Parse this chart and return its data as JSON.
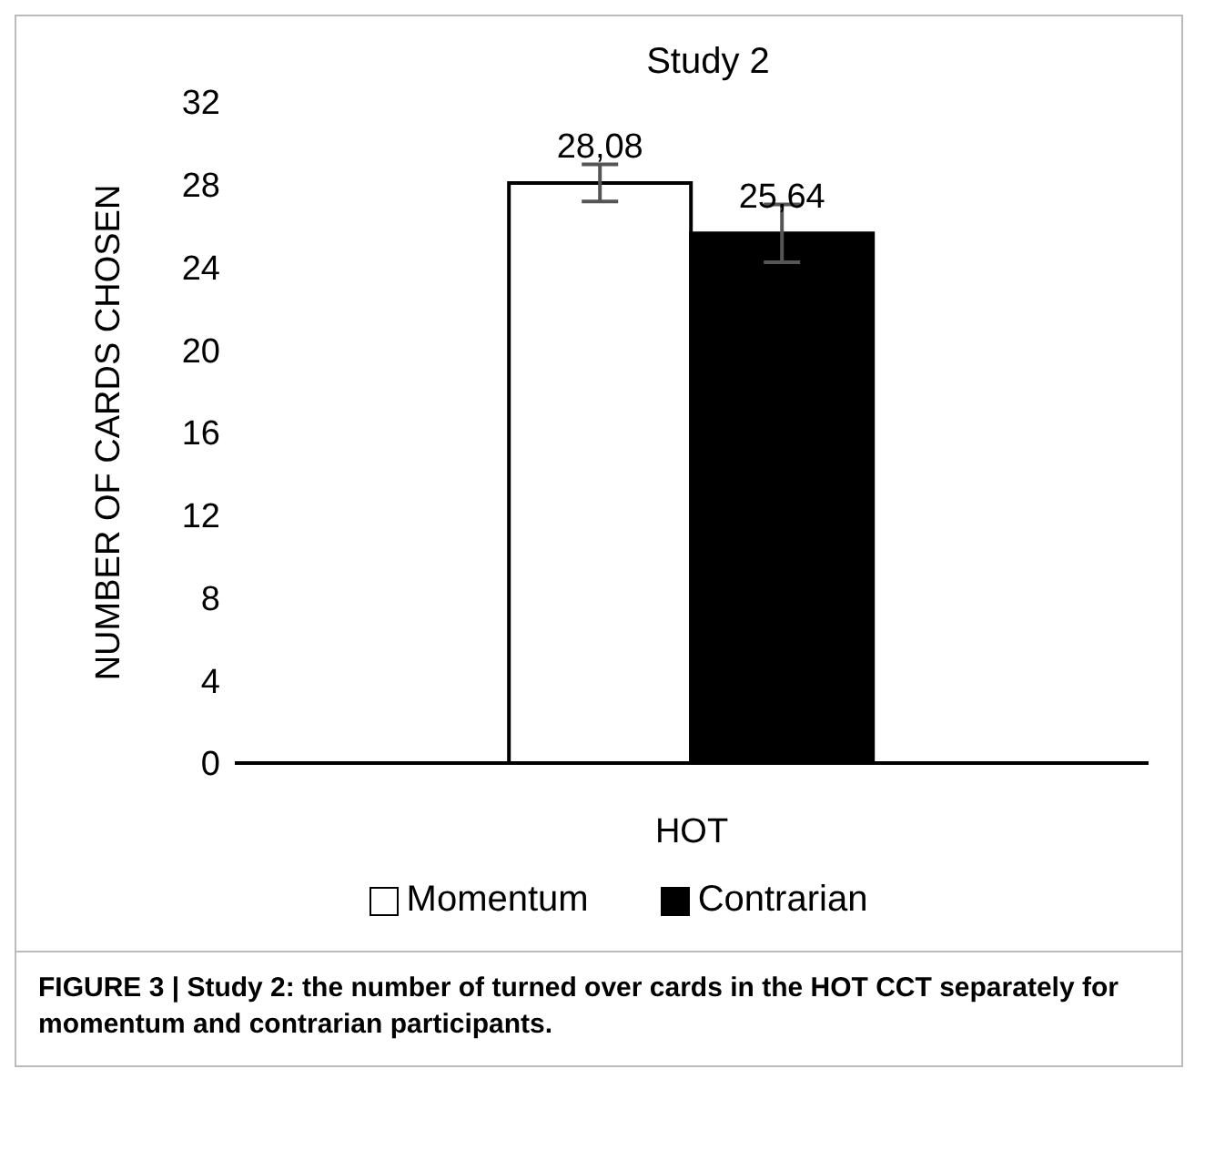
{
  "chart_data": {
    "type": "bar",
    "title": "Study 2",
    "ylabel": "NUMBER OF CARDS CHOSEN",
    "categories": [
      "HOT"
    ],
    "series": [
      {
        "name": "Momentum",
        "color": "#ffffff",
        "values": [
          28.08
        ],
        "errors": [
          0.9
        ],
        "value_labels": [
          "28,08"
        ]
      },
      {
        "name": "Contrarian",
        "color": "#000000",
        "values": [
          25.64
        ],
        "errors": [
          1.4
        ],
        "value_labels": [
          "25,64"
        ]
      }
    ],
    "ylim": [
      0,
      32
    ],
    "yticks": [
      0,
      4,
      8,
      12,
      16,
      20,
      24,
      28,
      32
    ],
    "grid": false,
    "legend": "bottom",
    "annotations": [
      "FIGURE 3 | Study 2: the number of turned over cards in the HOT CCT separately for momentum and contrarian participants."
    ]
  }
}
